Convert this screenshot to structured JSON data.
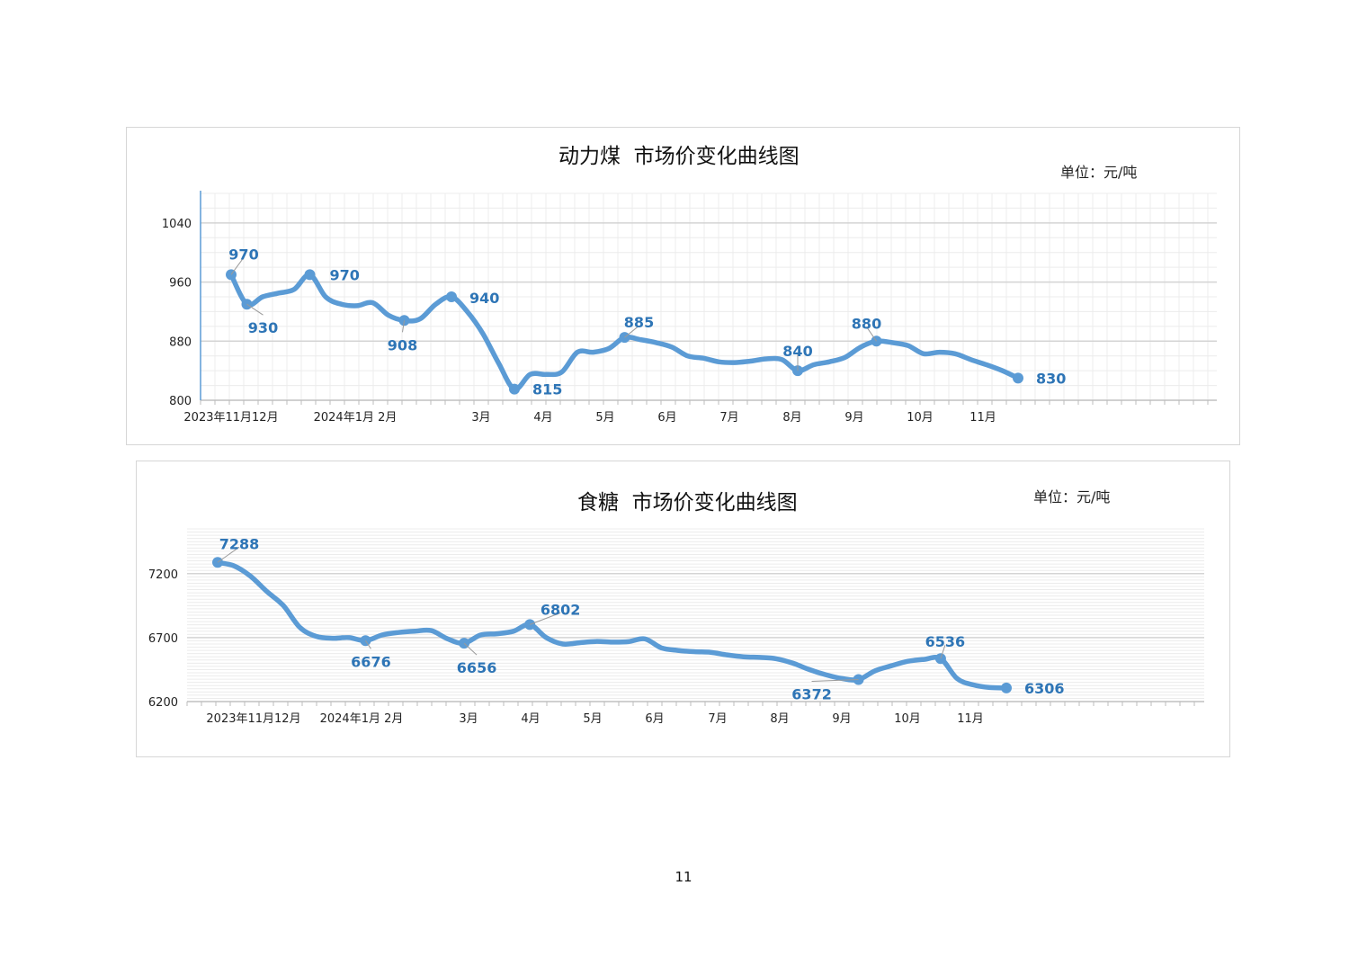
{
  "chart_data": [
    {
      "type": "line",
      "title": "动力煤  市场价变化曲线图",
      "unit": "单位：元/吨",
      "ylim": [
        800,
        1080
      ],
      "yticks": [
        800,
        880,
        960,
        1040
      ],
      "grid": true,
      "xtick_labels": [
        "2023年11月12月",
        "2024年1月 2月",
        "3月",
        "4月",
        "5月",
        "6月",
        "7月",
        "8月",
        "9月",
        "10月",
        "11月"
      ],
      "series": [
        {
          "color": "#5b9bd5",
          "values": [
            970,
            930,
            940,
            945,
            950,
            970,
            940,
            930,
            928,
            932,
            915,
            908,
            910,
            930,
            940,
            920,
            890,
            850,
            815,
            835,
            835,
            838,
            865,
            865,
            870,
            885,
            882,
            878,
            872,
            860,
            857,
            852,
            851,
            853,
            856,
            855,
            840,
            848,
            852,
            858,
            872,
            880,
            878,
            874,
            863,
            865,
            863,
            855,
            848,
            840,
            830
          ],
          "point_labels": [
            {
              "index": 0,
              "text": "970"
            },
            {
              "index": 1,
              "text": "930"
            },
            {
              "index": 5,
              "text": "970"
            },
            {
              "index": 11,
              "text": "908"
            },
            {
              "index": 14,
              "text": "940"
            },
            {
              "index": 18,
              "text": "815"
            },
            {
              "index": 25,
              "text": "885"
            },
            {
              "index": 36,
              "text": "840"
            },
            {
              "index": 41,
              "text": "880"
            },
            {
              "index": 50,
              "text": "830"
            }
          ]
        }
      ]
    },
    {
      "type": "line",
      "title": "食糖  市场价变化曲线图",
      "unit": "单位：元/吨",
      "ylim": [
        6200,
        7550
      ],
      "yticks": [
        6200,
        6700,
        7200
      ],
      "grid": true,
      "xtick_labels": [
        "2023年11月12月",
        "2024年1月 2月",
        "3月",
        "4月",
        "5月",
        "6月",
        "7月",
        "8月",
        "9月",
        "10月",
        "11月"
      ],
      "series": [
        {
          "color": "#5b9bd5",
          "values": [
            7288,
            7260,
            7180,
            7060,
            6950,
            6780,
            6710,
            6695,
            6700,
            6676,
            6720,
            6740,
            6750,
            6755,
            6690,
            6656,
            6720,
            6730,
            6750,
            6802,
            6700,
            6650,
            6660,
            6670,
            6665,
            6668,
            6690,
            6620,
            6600,
            6590,
            6585,
            6565,
            6550,
            6545,
            6535,
            6500,
            6450,
            6410,
            6380,
            6372,
            6440,
            6480,
            6515,
            6530,
            6536,
            6380,
            6330,
            6310,
            6306
          ],
          "point_labels": [
            {
              "index": 0,
              "text": "7288"
            },
            {
              "index": 9,
              "text": "6676"
            },
            {
              "index": 15,
              "text": "6656"
            },
            {
              "index": 19,
              "text": "6802"
            },
            {
              "index": 39,
              "text": "6372"
            },
            {
              "index": 44,
              "text": "6536"
            },
            {
              "index": 48,
              "text": "6306"
            }
          ]
        }
      ]
    }
  ],
  "page_number": "11"
}
